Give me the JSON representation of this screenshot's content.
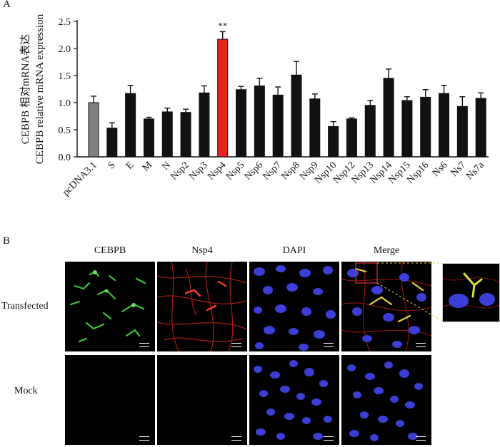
{
  "panel_a_label": "A",
  "panel_b_label": "B",
  "chart_data": {
    "type": "bar",
    "ylabel_cn": "CEBPB 相对mRNA表达",
    "ylabel_en": "CEBPB relative mRNA expression",
    "ylim": [
      0,
      2.5
    ],
    "yticks": [
      "0.0",
      "0.5",
      "1.0",
      "1.5",
      "2.0",
      "2.5"
    ],
    "categories": [
      "pcDNA3.1",
      "S",
      "E",
      "M",
      "N",
      "Nsp2",
      "Nsp3",
      "Nsp4",
      "Nsp5",
      "Nsp6",
      "Nsp7",
      "Nsp8",
      "Nsp9",
      "Nsp10",
      "Nsp12",
      "Nsp13",
      "Nsp14",
      "Nsp15",
      "Nsp16",
      "Ns6",
      "Ns7",
      "Ns7a"
    ],
    "values": [
      1.0,
      0.53,
      1.17,
      0.7,
      0.83,
      0.82,
      1.18,
      2.17,
      1.24,
      1.31,
      1.14,
      1.51,
      1.07,
      0.56,
      0.7,
      0.95,
      1.45,
      1.04,
      1.1,
      1.17,
      0.93,
      1.08
    ],
    "errors": [
      0.12,
      0.1,
      0.15,
      0.03,
      0.07,
      0.06,
      0.13,
      0.14,
      0.06,
      0.14,
      0.15,
      0.25,
      0.09,
      0.09,
      0.02,
      0.09,
      0.17,
      0.07,
      0.14,
      0.15,
      0.18,
      0.1
    ],
    "bar_colors": [
      "#808080",
      "#111111",
      "#111111",
      "#111111",
      "#111111",
      "#111111",
      "#111111",
      "#e8231d",
      "#111111",
      "#111111",
      "#111111",
      "#111111",
      "#111111",
      "#111111",
      "#111111",
      "#111111",
      "#111111",
      "#111111",
      "#111111",
      "#111111",
      "#111111",
      "#111111"
    ],
    "annotations": [
      {
        "category": "Nsp4",
        "text": "**"
      }
    ]
  },
  "microscopy": {
    "columns": [
      "CEBPB",
      "Nsp4",
      "DAPI",
      "Merge"
    ],
    "rows": [
      "Transfected",
      "Mock"
    ],
    "channel_colors": {
      "green": "#3ec23a",
      "red": "#e0241e",
      "blue": "#3b3fd6",
      "yellow": "#e7d431"
    }
  }
}
